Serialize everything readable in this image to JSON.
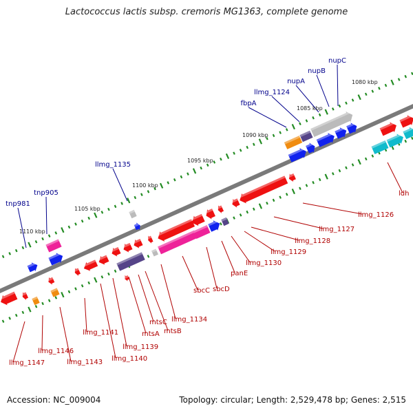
{
  "title": "Lactococcus lactis subsp. cremoris MG1363, complete genome",
  "footer": {
    "accession": "Accession: NC_009004",
    "topology": "Topology: circular; Length: 2,529,478 bp; Genes: 2,515"
  },
  "colors": {
    "backbone": "#7a7a7a",
    "tick_dash": "#228b22",
    "forward_label": "#00008b",
    "reverse_label": "#b00000",
    "red": "#ee1111",
    "blue": "#1122ee",
    "orange": "#f08c10",
    "pink": "#ee2299",
    "grey": "#bbbbbb",
    "slate": "#554488",
    "cyan": "#11bbcc"
  },
  "position_labels": [
    {
      "text": "1080 kbp"
    },
    {
      "text": "1085 kbp"
    },
    {
      "text": "1090 kbp"
    },
    {
      "text": "1095 kbp"
    },
    {
      "text": "1100 kbp"
    },
    {
      "text": "1105 kbp"
    },
    {
      "text": "1110 kbp"
    }
  ],
  "forward_labels": [
    {
      "text": "nupC"
    },
    {
      "text": "nupB"
    },
    {
      "text": "nupA"
    },
    {
      "text": "llmg_1124"
    },
    {
      "text": "fbpA"
    },
    {
      "text": "llmg_1135"
    },
    {
      "text": "tnp905"
    },
    {
      "text": "tnp981"
    }
  ],
  "reverse_labels": [
    {
      "text": "ldh"
    },
    {
      "text": "llmg_1126"
    },
    {
      "text": "llmg_1127"
    },
    {
      "text": "llmg_1128"
    },
    {
      "text": "llmg_1129"
    },
    {
      "text": "llmg_1130"
    },
    {
      "text": "panE"
    },
    {
      "text": "sbcD"
    },
    {
      "text": "sbcC"
    },
    {
      "text": "llmg_1134"
    },
    {
      "text": "mtsB"
    },
    {
      "text": "mtsC"
    },
    {
      "text": "mtsA"
    },
    {
      "text": "llmg_1139"
    },
    {
      "text": "llmg_1140"
    },
    {
      "text": "llmg_1141"
    },
    {
      "text": "llmg_1143"
    },
    {
      "text": "llmg_1146"
    },
    {
      "text": "llmg_1147"
    }
  ]
}
